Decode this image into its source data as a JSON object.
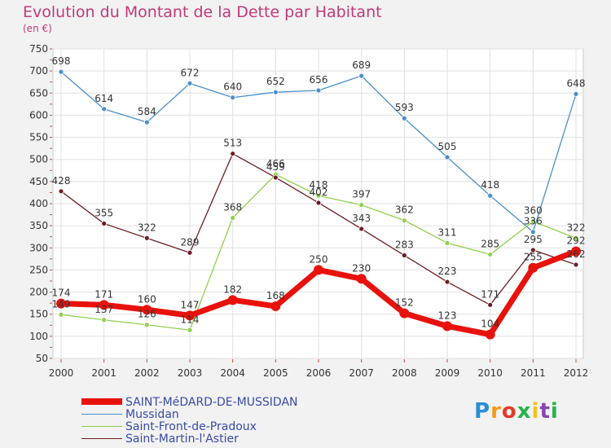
{
  "chart_data": {
    "type": "line",
    "title": "Evolution du Montant de la Dette par Habitant",
    "subtitle": "(en €)",
    "x": [
      "2000",
      "2001",
      "2002",
      "2003",
      "2004",
      "2005",
      "2006",
      "2007",
      "2008",
      "2009",
      "2010",
      "2011",
      "2012"
    ],
    "ylim": [
      50,
      750
    ],
    "yticks": [
      50,
      100,
      150,
      200,
      250,
      300,
      350,
      400,
      450,
      500,
      550,
      600,
      650,
      700,
      750
    ],
    "grid": true,
    "legend_position": "bottom-left",
    "series": [
      {
        "name": "SAINT-MéDARD-DE-MUSSIDAN",
        "color": "#e8120c",
        "values": [
          174,
          171,
          160,
          147,
          182,
          168,
          250,
          230,
          152,
          123,
          104,
          255,
          292
        ]
      },
      {
        "name": "Mussidan",
        "color": "#4a8fcb",
        "values": [
          698,
          614,
          584,
          672,
          640,
          652,
          656,
          689,
          593,
          505,
          418,
          336,
          648
        ]
      },
      {
        "name": "Saint-Front-de-Pradoux",
        "color": "#8fd14f",
        "values": [
          149,
          137,
          126,
          114,
          368,
          466,
          418,
          397,
          362,
          311,
          285,
          360,
          322
        ]
      },
      {
        "name": "Saint-Martin-l'Astier",
        "color": "#6b1e22",
        "values": [
          428,
          355,
          322,
          289,
          513,
          459,
          402,
          343,
          283,
          223,
          171,
          295,
          262
        ]
      }
    ]
  },
  "logo": {
    "text": "Proxiti",
    "colors": [
      "#2a8fd6",
      "#f39c1a",
      "#e33a2a",
      "#27b34a",
      "#f2c21a",
      "#8c45b0",
      "#27b34a"
    ]
  }
}
